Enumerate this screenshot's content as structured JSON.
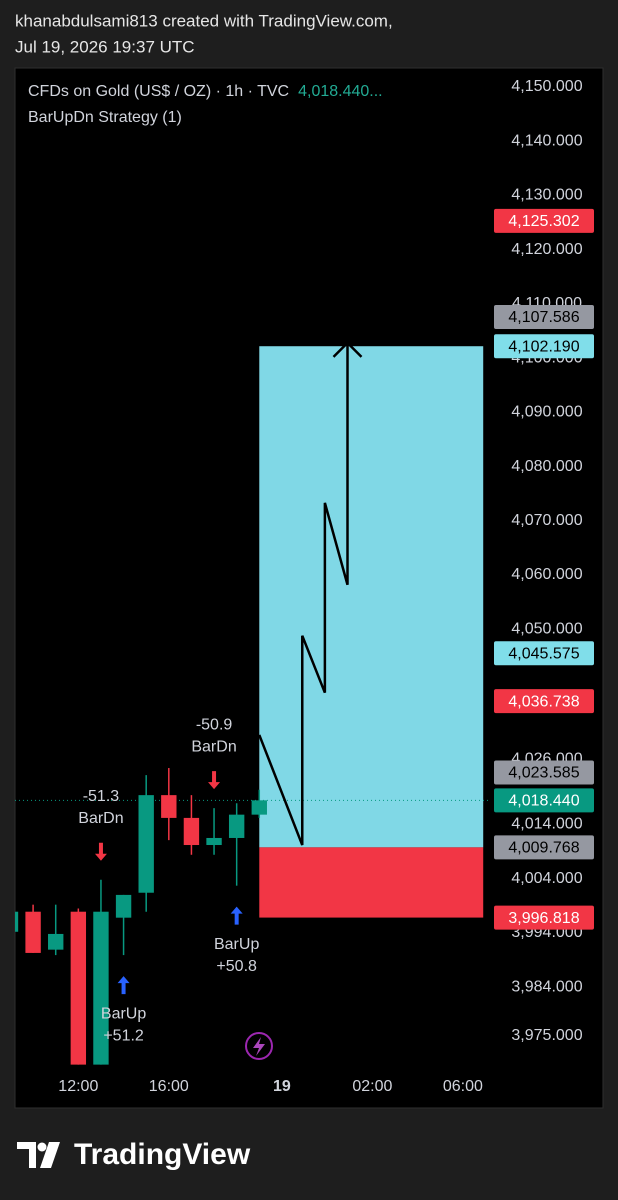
{
  "header": {
    "line1": "khanabdulsami813 created with TradingView.com,",
    "line2": "Jul 19, 2026 19:37 UTC"
  },
  "chart_data": {
    "type": "candlestick",
    "title": "CFDs on Gold (US$ / OZ) · 1h · TVC",
    "last_price_text": "4,018.440...",
    "subtitle": "BarUpDn Strategy (1)",
    "x": [
      0,
      1,
      2,
      3,
      4,
      5,
      6,
      7,
      8,
      9,
      10,
      11
    ],
    "open": [
      3994.2,
      3997.9,
      3990.9,
      3997.9,
      3969.7,
      3996.8,
      4001.4,
      4019.4,
      4015.2,
      4010.2,
      4011.5,
      4015.8
    ],
    "high": [
      3999.0,
      3999.2,
      3999.2,
      3998.5,
      4003.8,
      4001.0,
      4023.1,
      4024.4,
      4019.4,
      4017.0,
      4017.9,
      4020.4
    ],
    "low": [
      3993.0,
      3990.3,
      3989.9,
      3969.7,
      3969.7,
      3989.9,
      3997.9,
      4011.1,
      4008.4,
      4008.4,
      4002.7,
      4015.2
    ],
    "close": [
      3997.9,
      3990.3,
      3993.8,
      3969.7,
      3997.9,
      4001.0,
      4019.4,
      4015.2,
      4010.2,
      4011.5,
      4015.8,
      4018.44
    ],
    "up_color": "#089981",
    "down_color": "#f23645",
    "grid": false,
    "xlim": [
      0.2,
      21.2
    ],
    "xticks": [
      {
        "value": 3,
        "label": "12:00"
      },
      {
        "value": 7,
        "label": "16:00"
      },
      {
        "value": 12,
        "label": "19"
      },
      {
        "value": 16,
        "label": "02:00"
      },
      {
        "value": 20,
        "label": "06:00"
      }
    ],
    "ylim": [
      3961.7,
      4153.5
    ],
    "yticks": [
      {
        "value": 4150,
        "label": "4,150.000"
      },
      {
        "value": 4140,
        "label": "4,140.000"
      },
      {
        "value": 4130,
        "label": "4,130.000"
      },
      {
        "value": 4120,
        "label": "4,120.000"
      },
      {
        "value": 4110,
        "label": "4,110.000"
      },
      {
        "value": 4100,
        "label": "4,100.000"
      },
      {
        "value": 4090,
        "label": "4,090.000"
      },
      {
        "value": 4080,
        "label": "4,080.000"
      },
      {
        "value": 4070,
        "label": "4,070.000"
      },
      {
        "value": 4060,
        "label": "4,060.000"
      },
      {
        "value": 4050,
        "label": "4,050.000"
      },
      {
        "value": 4026,
        "label": "4,026.000"
      },
      {
        "value": 4014,
        "label": "4,014.000"
      },
      {
        "value": 4004,
        "label": "4,004.000"
      },
      {
        "value": 3994,
        "label": "3,994.000"
      },
      {
        "value": 3984,
        "label": "3,984.000"
      },
      {
        "value": 3975,
        "label": "3,975.000"
      }
    ],
    "price_labels": [
      {
        "value": 4125.302,
        "label": "4,125.302",
        "color": "#f23645",
        "text_color": "#ffffff"
      },
      {
        "value": 4107.586,
        "label": "4,107.586",
        "color": "#9598a1",
        "text_color": "#000000"
      },
      {
        "value": 4102.19,
        "label": "4,102.190",
        "color": "#80deea",
        "text_color": "#000000"
      },
      {
        "value": 4045.575,
        "label": "4,045.575",
        "color": "#80deea",
        "text_color": "#000000"
      },
      {
        "value": 4036.738,
        "label": "4,036.738",
        "color": "#f23645",
        "text_color": "#ffffff"
      },
      {
        "value": 4023.585,
        "label": "4,023.585",
        "color": "#9598a1",
        "text_color": "#000000"
      },
      {
        "value": 4018.44,
        "label": "4,018.440",
        "color": "#089981",
        "text_color": "#ffffff"
      },
      {
        "value": 4009.768,
        "label": "4,009.768",
        "color": "#9598a1",
        "text_color": "#000000"
      },
      {
        "value": 3996.818,
        "label": "3,996.818",
        "color": "#f23645",
        "text_color": "#ffffff"
      }
    ],
    "signals": [
      {
        "name": "BarDn",
        "text": "-51.3",
        "x": 4,
        "side": "above",
        "color": "#f23645"
      },
      {
        "name": "BarUp",
        "text": "+51.2",
        "x": 5,
        "side": "below",
        "color": "#2962ff"
      },
      {
        "name": "BarDn",
        "text": "-50.9",
        "x": 9,
        "side": "above",
        "color": "#f23645"
      },
      {
        "name": "BarUp",
        "text": "+50.8",
        "x": 10,
        "side": "below",
        "color": "#2962ff"
      }
    ],
    "position": {
      "entry": 4009.768,
      "target": 4102.19,
      "stop": 3996.818,
      "x_start": 11,
      "x_end": 20.9,
      "profit_color": "#80d8e6",
      "loss_color": "#f23645"
    },
    "drawing": {
      "x": [
        11,
        12.9,
        12.9,
        13.9,
        13.9,
        14.9,
        14.9
      ],
      "y": [
        4030.5,
        4010.2,
        4048.8,
        4038.3,
        4073.3,
        4058.2,
        4102.8
      ],
      "color": "#000000"
    }
  },
  "footer": {
    "brand": "TradingView"
  }
}
